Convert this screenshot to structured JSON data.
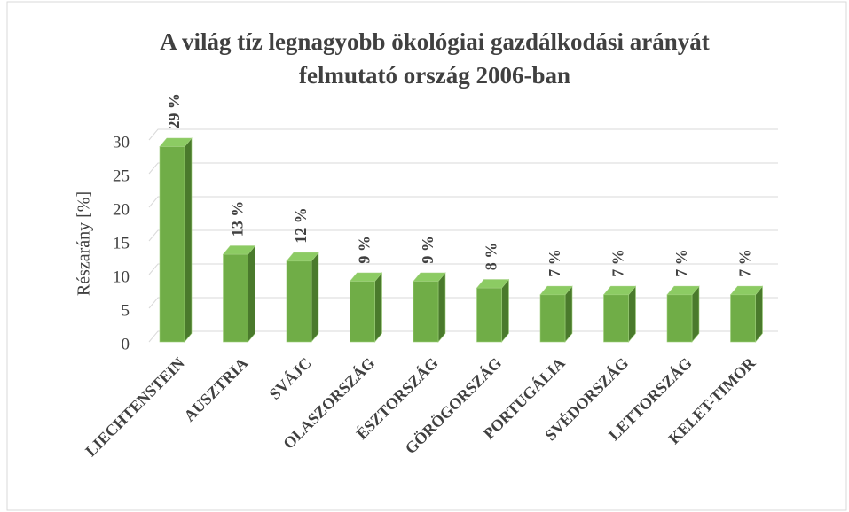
{
  "chart_data": {
    "type": "bar3d",
    "title": [
      "A világ tíz legnagyobb ökológiai gazdálkodási arányát",
      "felmutató ország 2006-ban"
    ],
    "y_label": "Részarány [%]",
    "categories": [
      "LIECHTENSTEIN",
      "AUSZTRIA",
      "SVÁJC",
      "OLASZORSZÁG",
      "ÉSZTORSZÁG",
      "GÖRÖGORSZÁG",
      "PORTUGÁLIA",
      "SVÉDORSZÁG",
      "LETTORSZÁG",
      "KELET-TIMOR"
    ],
    "values": [
      29,
      13,
      12,
      9,
      9,
      8,
      7,
      7,
      7,
      7
    ],
    "value_labels": [
      "29 %",
      "13 %",
      "12 %",
      "9 %",
      "9 %",
      "8 %",
      "7 %",
      "7 %",
      "7 %",
      "7 %"
    ],
    "color": "#70ad47",
    "ylim": [
      0,
      30
    ],
    "yticks": [
      0,
      5,
      10,
      15,
      20,
      25,
      30
    ],
    "grid": true
  }
}
